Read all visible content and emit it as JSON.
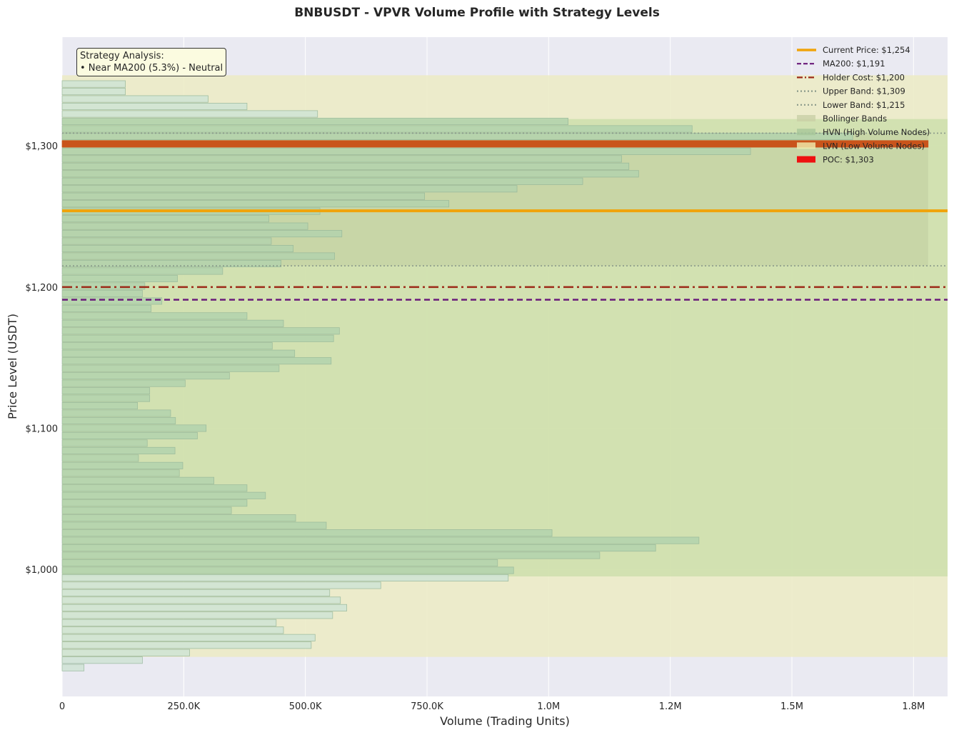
{
  "chart_data": {
    "type": "bar",
    "orientation": "horizontal",
    "title": "BNBUSDT - VPVR Volume Profile with Strategy Levels",
    "xlabel": "Volume (Trading Units)",
    "ylabel": "Price Level (USDT)",
    "xlim": [
      0,
      1820000
    ],
    "ylim": [
      910,
      1377
    ],
    "x_ticks": [
      0,
      250000,
      500000,
      750000,
      1000000,
      1250000,
      1500000,
      1750000
    ],
    "x_tick_labels": [
      "0",
      "250.0K",
      "500.0K",
      "750.0K",
      "1.0M",
      "1.2M",
      "1.5M",
      "1.8M"
    ],
    "y_ticks": [
      1000,
      1100,
      1200,
      1300
    ],
    "y_tick_labels": [
      "$1,000",
      "$1,100",
      "$1,200",
      "$1,300"
    ],
    "grid": true,
    "legend_position": "top-right",
    "bin_height": 5.3,
    "price_bins": [
      1354.4,
      1349.1,
      1343.8,
      1338.5,
      1333.2,
      1327.9,
      1322.6,
      1317.3,
      1312.0,
      1306.7,
      1301.4,
      1296.1,
      1290.8,
      1285.5,
      1280.2,
      1274.9,
      1269.6,
      1264.3,
      1259.0,
      1253.7,
      1248.4,
      1243.1,
      1237.8,
      1232.5,
      1227.2,
      1221.9,
      1216.6,
      1211.3,
      1206.0,
      1200.7,
      1195.4,
      1190.1,
      1184.8,
      1179.5,
      1174.2,
      1168.9,
      1163.6,
      1158.3,
      1153.0,
      1147.7,
      1142.4,
      1137.1,
      1131.8,
      1126.5,
      1121.2,
      1115.9,
      1110.6,
      1105.3,
      1100.0,
      1094.7,
      1089.4,
      1084.1,
      1078.8,
      1073.5,
      1068.2,
      1062.9,
      1057.6,
      1052.3,
      1047.0,
      1041.7,
      1036.4,
      1031.1,
      1025.8,
      1020.5,
      1015.2,
      1009.9,
      1004.6,
      999.3,
      994.0,
      988.7,
      983.4,
      978.1,
      972.8,
      967.5,
      962.2,
      956.9,
      951.6,
      946.3,
      941.0,
      935.7,
      930.4
    ],
    "volumes": [
      0,
      0,
      130000,
      130000,
      300000,
      380000,
      525000,
      1040000,
      1295000,
      1625000,
      1780000,
      1415000,
      1150000,
      1165000,
      1185000,
      1070000,
      935000,
      745000,
      795000,
      530000,
      425000,
      505000,
      575000,
      430000,
      475000,
      560000,
      450000,
      330000,
      237000,
      170000,
      165000,
      205000,
      183000,
      380000,
      455000,
      570000,
      558000,
      432000,
      478000,
      553000,
      446000,
      344000,
      253000,
      180000,
      180000,
      155000,
      223000,
      233000,
      296000,
      278000,
      175000,
      232000,
      157000,
      248000,
      241000,
      312000,
      380000,
      418000,
      380000,
      348000,
      480000,
      543000,
      1007000,
      1309000,
      1220000,
      1105000,
      895000,
      928000,
      917000,
      655000,
      550000,
      572000,
      585000,
      556000,
      440000,
      455000,
      520000,
      512000,
      262000,
      165000,
      45000
    ],
    "hvn_range": [
      995,
      1319
    ],
    "va_range": [
      938,
      1350
    ],
    "bollinger_range": [
      1215,
      1309
    ],
    "levels": {
      "current_price": 1254,
      "ma200": 1191,
      "holder_cost": 1200,
      "upper_band": 1309,
      "lower_band": 1215,
      "poc": 1303
    },
    "legend": [
      {
        "label": "Current Price: $1,254",
        "style": "solid",
        "color": "#f0a30a"
      },
      {
        "label": "MA200: $1,191",
        "style": "dashed",
        "color": "#6a1b7a"
      },
      {
        "label": "Holder Cost: $1,200",
        "style": "dashdot",
        "color": "#9c2a18"
      },
      {
        "label": "Upper Band: $1,309",
        "style": "dotted",
        "color": "#8a9a8a"
      },
      {
        "label": "Lower Band: $1,215",
        "style": "dotted",
        "color": "#8a9a8a"
      },
      {
        "label": "Bollinger Bands",
        "style": "patch",
        "color": "#c9cfa6"
      },
      {
        "label": "HVN (High Volume Nodes)",
        "style": "patch",
        "color": "#a8c79a"
      },
      {
        "label": "LVN (Low Volume Nodes)",
        "style": "patch",
        "color": "#f0efb0"
      },
      {
        "label": "POC: $1,303",
        "style": "patch",
        "color": "#ee1111"
      }
    ],
    "annotation": {
      "line1": "Strategy Analysis:",
      "line2": "• Near MA200 (5.3%) - Neutral"
    },
    "colors": {
      "plot_bg": "#eaeaf2",
      "grid": "#ffffff",
      "va_fill": "#ecebc7",
      "hvn_fill": "#cfe0ae",
      "bb_fill": "#c4d1a4",
      "bar_fill": "#b3d3ae",
      "bar_light": "#cfe4d5",
      "bar_edge": "#95b79a",
      "poc_bar": "#c9541b",
      "current_price": "#f0a30a",
      "ma200": "#6a1b7a",
      "holder_cost": "#9c2a18",
      "band_line": "#8a9a8a"
    }
  }
}
